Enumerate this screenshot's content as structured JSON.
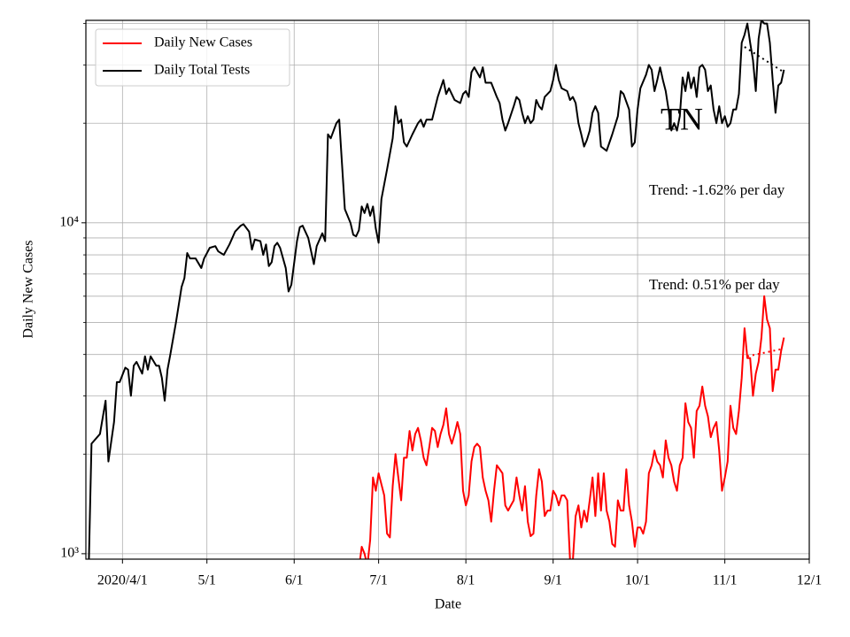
{
  "chart_data": {
    "type": "line",
    "ylabel": "Daily New Cases",
    "xlabel": "Date",
    "log_y": true,
    "grid": true,
    "legend": "upper left",
    "xlim": [
      "2020-03-19",
      "2020-12-01"
    ],
    "xticks": [
      {
        "value": "2020-04-01",
        "label": "2020/4/1"
      },
      {
        "value": "2020-05-01",
        "label": "5/1"
      },
      {
        "value": "2020-06-01",
        "label": "6/1"
      },
      {
        "value": "2020-07-01",
        "label": "7/1"
      },
      {
        "value": "2020-08-01",
        "label": "8/1"
      },
      {
        "value": "2020-09-01",
        "label": "9/1"
      },
      {
        "value": "2020-10-01",
        "label": "10/1"
      },
      {
        "value": "2020-11-01",
        "label": "11/1"
      },
      {
        "value": "2020-12-01",
        "label": "12/1"
      }
    ],
    "ylim": [
      963,
      40900
    ],
    "yticks": [
      {
        "value": 1000,
        "label": "10³"
      },
      {
        "value": 10000,
        "label": "10⁴"
      }
    ],
    "yminor": [
      2000,
      3000,
      4000,
      5000,
      6000,
      7000,
      8000,
      9000,
      20000,
      30000,
      40000
    ],
    "annotations": [
      "TN",
      "Trend: -1.62% per day",
      "Trend: 0.51% per day"
    ],
    "series": [
      {
        "name": "Daily New Cases",
        "color": "#ff0000",
        "x": [
          "2020-06-24",
          "2020-06-25",
          "2020-06-26",
          "2020-06-27",
          "2020-06-28",
          "2020-06-29",
          "2020-06-30",
          "2020-07-01",
          "2020-07-03",
          "2020-07-04",
          "2020-07-05",
          "2020-07-06",
          "2020-07-07",
          "2020-07-08",
          "2020-07-09",
          "2020-07-10",
          "2020-07-11",
          "2020-07-12",
          "2020-07-13",
          "2020-07-14",
          "2020-07-15",
          "2020-07-16",
          "2020-07-17",
          "2020-07-18",
          "2020-07-19",
          "2020-07-20",
          "2020-07-21",
          "2020-07-22",
          "2020-07-23",
          "2020-07-24",
          "2020-07-25",
          "2020-07-26",
          "2020-07-27",
          "2020-07-28",
          "2020-07-29",
          "2020-07-30",
          "2020-07-31",
          "2020-08-01",
          "2020-08-02",
          "2020-08-03",
          "2020-08-04",
          "2020-08-05",
          "2020-08-06",
          "2020-08-07",
          "2020-08-08",
          "2020-08-09",
          "2020-08-10",
          "2020-08-11",
          "2020-08-12",
          "2020-08-13",
          "2020-08-14",
          "2020-08-15",
          "2020-08-16",
          "2020-08-17",
          "2020-08-18",
          "2020-08-19",
          "2020-08-20",
          "2020-08-21",
          "2020-08-22",
          "2020-08-23",
          "2020-08-24",
          "2020-08-25",
          "2020-08-26",
          "2020-08-27",
          "2020-08-28",
          "2020-08-29",
          "2020-08-30",
          "2020-08-31",
          "2020-09-01",
          "2020-09-02",
          "2020-09-03",
          "2020-09-04",
          "2020-09-05",
          "2020-09-06",
          "2020-09-07",
          "2020-09-08",
          "2020-09-09",
          "2020-09-10",
          "2020-09-11",
          "2020-09-12",
          "2020-09-13",
          "2020-09-14",
          "2020-09-15",
          "2020-09-16",
          "2020-09-17",
          "2020-09-18",
          "2020-09-19",
          "2020-09-20",
          "2020-09-21",
          "2020-09-22",
          "2020-09-23",
          "2020-09-24",
          "2020-09-25",
          "2020-09-26",
          "2020-09-27",
          "2020-09-28",
          "2020-09-29",
          "2020-09-30",
          "2020-10-01",
          "2020-10-02",
          "2020-10-03",
          "2020-10-04",
          "2020-10-05",
          "2020-10-06",
          "2020-10-07",
          "2020-10-08",
          "2020-10-09",
          "2020-10-10",
          "2020-10-11",
          "2020-10-12",
          "2020-10-13",
          "2020-10-14",
          "2020-10-15",
          "2020-10-16",
          "2020-10-17",
          "2020-10-18",
          "2020-10-19",
          "2020-10-20",
          "2020-10-21",
          "2020-10-22",
          "2020-10-23",
          "2020-10-24",
          "2020-10-25",
          "2020-10-26",
          "2020-10-27",
          "2020-10-28",
          "2020-10-29",
          "2020-10-30",
          "2020-10-31",
          "2020-11-01",
          "2020-11-02",
          "2020-11-03",
          "2020-11-04",
          "2020-11-05",
          "2020-11-06",
          "2020-11-07",
          "2020-11-08",
          "2020-11-09",
          "2020-11-10",
          "2020-11-11",
          "2020-11-12",
          "2020-11-13",
          "2020-11-14",
          "2020-11-15",
          "2020-11-16",
          "2020-11-17",
          "2020-11-18",
          "2020-11-19",
          "2020-11-20",
          "2020-11-21",
          "2020-11-22"
        ],
        "values": [
          900,
          1050,
          1000,
          920,
          1100,
          1700,
          1550,
          1750,
          1500,
          1150,
          1120,
          1600,
          2000,
          1700,
          1450,
          1950,
          1950,
          2350,
          2050,
          2300,
          2400,
          2200,
          1950,
          1850,
          2100,
          2400,
          2350,
          2100,
          2300,
          2450,
          2750,
          2300,
          2150,
          2300,
          2500,
          2300,
          1550,
          1400,
          1500,
          1900,
          2100,
          2150,
          2100,
          1700,
          1550,
          1450,
          1250,
          1550,
          1850,
          1800,
          1750,
          1400,
          1350,
          1400,
          1450,
          1700,
          1500,
          1350,
          1600,
          1250,
          1130,
          1150,
          1500,
          1800,
          1650,
          1300,
          1350,
          1350,
          1550,
          1500,
          1400,
          1500,
          1500,
          1450,
          960,
          950,
          1300,
          1400,
          1200,
          1350,
          1250,
          1450,
          1700,
          1300,
          1750,
          1350,
          1750,
          1350,
          1250,
          1070,
          1050,
          1450,
          1350,
          1350,
          1800,
          1400,
          1250,
          1050,
          1200,
          1200,
          1150,
          1250,
          1750,
          1850,
          2050,
          1900,
          1850,
          1700,
          2200,
          1950,
          1850,
          1650,
          1550,
          1850,
          1950,
          2850,
          2500,
          2400,
          1950,
          2700,
          2800,
          3200,
          2800,
          2600,
          2250,
          2400,
          2500,
          2050,
          1550,
          1700,
          1900,
          2800,
          2400,
          2300,
          2700,
          3400,
          4800,
          3900,
          3900,
          3000,
          3500,
          3800,
          4500,
          6000,
          5100,
          4800,
          3100,
          3600,
          3600,
          4100,
          4500
        ]
      },
      {
        "name": "Daily Total Tests",
        "color": "#000000",
        "x": [
          "2020-03-20",
          "2020-03-21",
          "2020-03-24",
          "2020-03-26",
          "2020-03-27",
          "2020-03-29",
          "2020-03-30",
          "2020-03-31",
          "2020-04-02",
          "2020-04-03",
          "2020-04-04",
          "2020-04-05",
          "2020-04-06",
          "2020-04-08",
          "2020-04-09",
          "2020-04-10",
          "2020-04-11",
          "2020-04-13",
          "2020-04-14",
          "2020-04-15",
          "2020-04-16",
          "2020-04-17",
          "2020-04-18",
          "2020-04-20",
          "2020-04-22",
          "2020-04-23",
          "2020-04-24",
          "2020-04-25",
          "2020-04-27",
          "2020-04-29",
          "2020-04-30",
          "2020-05-02",
          "2020-05-04",
          "2020-05-05",
          "2020-05-07",
          "2020-05-09",
          "2020-05-11",
          "2020-05-13",
          "2020-05-14",
          "2020-05-16",
          "2020-05-17",
          "2020-05-18",
          "2020-05-20",
          "2020-05-21",
          "2020-05-22",
          "2020-05-23",
          "2020-05-24",
          "2020-05-25",
          "2020-05-26",
          "2020-05-27",
          "2020-05-29",
          "2020-05-30",
          "2020-05-31",
          "2020-06-02",
          "2020-06-03",
          "2020-06-04",
          "2020-06-06",
          "2020-06-08",
          "2020-06-09",
          "2020-06-11",
          "2020-06-12",
          "2020-06-13",
          "2020-06-14",
          "2020-06-16",
          "2020-06-17",
          "2020-06-19",
          "2020-06-21",
          "2020-06-22",
          "2020-06-23",
          "2020-06-24",
          "2020-06-25",
          "2020-06-26",
          "2020-06-27",
          "2020-06-28",
          "2020-06-29",
          "2020-06-30",
          "2020-07-01",
          "2020-07-02",
          "2020-07-04",
          "2020-07-06",
          "2020-07-07",
          "2020-07-08",
          "2020-07-09",
          "2020-07-10",
          "2020-07-11",
          "2020-07-13",
          "2020-07-15",
          "2020-07-16",
          "2020-07-17",
          "2020-07-18",
          "2020-07-20",
          "2020-07-22",
          "2020-07-24",
          "2020-07-25",
          "2020-07-26",
          "2020-07-28",
          "2020-07-30",
          "2020-07-31",
          "2020-08-01",
          "2020-08-02",
          "2020-08-03",
          "2020-08-04",
          "2020-08-06",
          "2020-08-07",
          "2020-08-08",
          "2020-08-10",
          "2020-08-12",
          "2020-08-13",
          "2020-08-14",
          "2020-08-15",
          "2020-08-16",
          "2020-08-18",
          "2020-08-19",
          "2020-08-20",
          "2020-08-21",
          "2020-08-22",
          "2020-08-23",
          "2020-08-24",
          "2020-08-25",
          "2020-08-26",
          "2020-08-27",
          "2020-08-28",
          "2020-08-29",
          "2020-08-31",
          "2020-09-01",
          "2020-09-02",
          "2020-09-03",
          "2020-09-04",
          "2020-09-06",
          "2020-09-07",
          "2020-09-08",
          "2020-09-09",
          "2020-09-10",
          "2020-09-11",
          "2020-09-12",
          "2020-09-13",
          "2020-09-14",
          "2020-09-15",
          "2020-09-16",
          "2020-09-17",
          "2020-09-18",
          "2020-09-20",
          "2020-09-22",
          "2020-09-24",
          "2020-09-25",
          "2020-09-26",
          "2020-09-28",
          "2020-09-29",
          "2020-09-30",
          "2020-10-01",
          "2020-10-02",
          "2020-10-04",
          "2020-10-05",
          "2020-10-06",
          "2020-10-07",
          "2020-10-08",
          "2020-10-09",
          "2020-10-10",
          "2020-10-11",
          "2020-10-12",
          "2020-10-13",
          "2020-10-14",
          "2020-10-15",
          "2020-10-16",
          "2020-10-17",
          "2020-10-18",
          "2020-10-19",
          "2020-10-20",
          "2020-10-21",
          "2020-10-22",
          "2020-10-23",
          "2020-10-24",
          "2020-10-25",
          "2020-10-26",
          "2020-10-27",
          "2020-10-28",
          "2020-10-29",
          "2020-10-30",
          "2020-10-31",
          "2020-11-01",
          "2020-11-02",
          "2020-11-03",
          "2020-11-04",
          "2020-11-05",
          "2020-11-06",
          "2020-11-07",
          "2020-11-08",
          "2020-11-09",
          "2020-11-10",
          "2020-11-11",
          "2020-11-12",
          "2020-11-13",
          "2020-11-14",
          "2020-11-15",
          "2020-11-16",
          "2020-11-17",
          "2020-11-18",
          "2020-11-19",
          "2020-11-20",
          "2020-11-21",
          "2020-11-22"
        ],
        "values": [
          900,
          2150,
          2300,
          2900,
          1900,
          2500,
          3300,
          3300,
          3650,
          3600,
          3000,
          3700,
          3800,
          3500,
          3950,
          3600,
          3950,
          3700,
          3700,
          3400,
          2900,
          3600,
          4000,
          5000,
          6400,
          6800,
          8100,
          7800,
          7800,
          7300,
          7800,
          8400,
          8500,
          8200,
          8000,
          8600,
          9400,
          9800,
          9900,
          9400,
          8300,
          8900,
          8800,
          8000,
          8600,
          7400,
          7600,
          8500,
          8700,
          8400,
          7300,
          6200,
          6500,
          8800,
          9700,
          9800,
          9000,
          7500,
          8500,
          9300,
          8800,
          18500,
          18000,
          20000,
          20500,
          11000,
          10000,
          9200,
          9100,
          9500,
          11200,
          10700,
          11400,
          10500,
          11200,
          9600,
          8700,
          11800,
          14500,
          18000,
          22500,
          20000,
          20500,
          17500,
          17000,
          18500,
          20000,
          20500,
          19500,
          20500,
          20500,
          24000,
          27000,
          24500,
          25500,
          23500,
          23000,
          24500,
          25000,
          24000,
          28500,
          29500,
          27500,
          29500,
          26500,
          26500,
          24000,
          23000,
          20500,
          19000,
          20000,
          22500,
          24000,
          23500,
          21500,
          20000,
          21000,
          20000,
          20500,
          23500,
          22500,
          22000,
          24000,
          25000,
          27000,
          30000,
          27000,
          25500,
          25000,
          23500,
          24000,
          23000,
          20000,
          18500,
          17000,
          17800,
          19000,
          21500,
          22500,
          21500,
          17000,
          16500,
          18500,
          21000,
          25000,
          24500,
          22000,
          17000,
          17500,
          22000,
          25500,
          28000,
          30000,
          29000,
          25000,
          27000,
          29500,
          27000,
          25000,
          22000,
          19000,
          20000,
          19000,
          21000,
          27500,
          25000,
          28500,
          25500,
          27500,
          24000,
          29500,
          30000,
          29000,
          25000,
          26000,
          22000,
          20000,
          22500,
          20000,
          21000,
          19500,
          20000,
          22000,
          22000,
          24500,
          35000,
          37000,
          40000,
          35000,
          31000,
          25000,
          36000,
          41000,
          40000,
          40000,
          35000,
          27000,
          21500,
          26000,
          26500,
          29000
        ]
      }
    ],
    "trend_lines": [
      {
        "color": "#000000",
        "x": [
          "2020-11-08",
          "2020-11-22"
        ],
        "values": [
          34000,
          28500
        ]
      },
      {
        "color": "#ff0000",
        "x": [
          "2020-11-09",
          "2020-11-21"
        ],
        "values": [
          3950,
          4150
        ]
      }
    ]
  }
}
